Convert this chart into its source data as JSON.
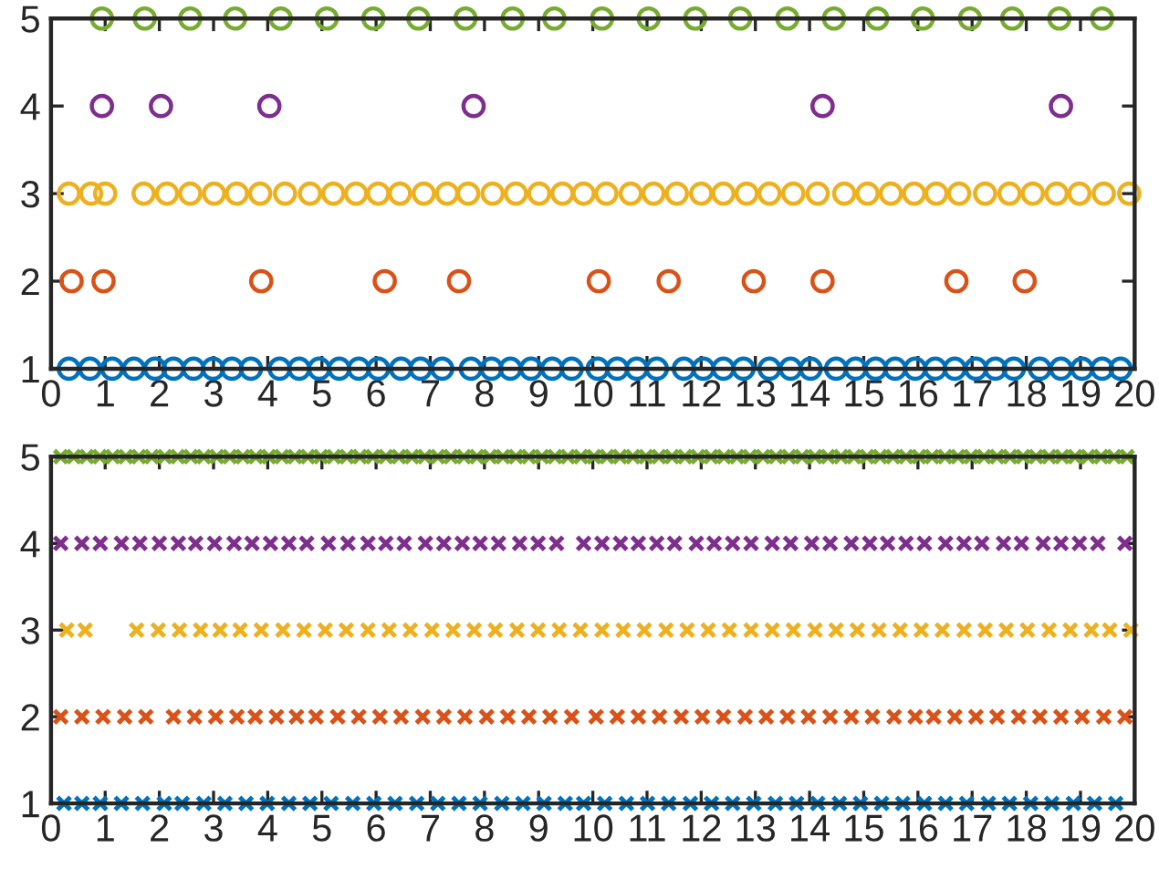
{
  "chart_data": [
    {
      "type": "scatter",
      "marker": "circle",
      "xlim": [
        0,
        20
      ],
      "xticks": [
        0,
        1,
        2,
        3,
        4,
        5,
        6,
        7,
        8,
        9,
        10,
        11,
        12,
        13,
        14,
        15,
        16,
        17,
        18,
        19,
        20
      ],
      "ylim": [
        1,
        5
      ],
      "yticks": [
        1,
        2,
        3,
        4,
        5
      ],
      "grid": false,
      "series": [
        {
          "color": "#0072bd",
          "x": [
            0.33,
            0.72,
            1.13,
            1.53,
            1.92,
            2.26,
            2.63,
            2.99,
            3.34,
            3.69,
            4.22,
            4.58,
            4.95,
            5.32,
            5.68,
            6.04,
            6.46,
            6.82,
            7.22,
            7.75,
            8.13,
            8.48,
            8.86,
            9.25,
            9.61,
            10.09,
            10.45,
            10.81,
            11.18,
            11.68,
            12.04,
            12.41,
            12.78,
            13.26,
            13.65,
            14.02,
            14.49,
            14.85,
            15.22,
            15.58,
            15.95,
            16.32,
            16.68,
            17.07,
            17.43,
            17.77,
            18.25,
            18.64,
            19.03,
            19.4,
            19.74
          ],
          "values": [
            1,
            1,
            1,
            1,
            1,
            1,
            1,
            1,
            1,
            1,
            1,
            1,
            1,
            1,
            1,
            1,
            1,
            1,
            1,
            1,
            1,
            1,
            1,
            1,
            1,
            1,
            1,
            1,
            1,
            1,
            1,
            1,
            1,
            1,
            1,
            1,
            1,
            1,
            1,
            1,
            1,
            1,
            1,
            1,
            1,
            1,
            1,
            1,
            1,
            1,
            1
          ]
        },
        {
          "color": "#d95319",
          "x": [
            0.38,
            0.97,
            3.88,
            6.16,
            7.53,
            10.11,
            11.4,
            12.97,
            14.24,
            16.71,
            17.97
          ],
          "values": [
            2,
            2,
            2,
            2,
            2,
            2,
            2,
            2,
            2,
            2,
            2
          ]
        },
        {
          "color": "#edb120",
          "x": [
            0.33,
            0.74,
            1.0,
            1.71,
            2.14,
            2.57,
            3.01,
            3.43,
            3.86,
            4.32,
            4.78,
            5.21,
            5.63,
            6.04,
            6.44,
            6.88,
            7.31,
            7.7,
            8.15,
            8.58,
            9.01,
            9.44,
            9.83,
            10.25,
            10.7,
            11.12,
            11.55,
            12.0,
            12.41,
            12.84,
            13.26,
            13.7,
            14.15,
            14.64,
            15.07,
            15.5,
            15.93,
            16.34,
            16.76,
            17.24,
            17.69,
            18.12,
            18.56,
            18.98,
            19.43,
            19.9
          ],
          "values": [
            3,
            3,
            3,
            3,
            3,
            3,
            3,
            3,
            3,
            3,
            3,
            3,
            3,
            3,
            3,
            3,
            3,
            3,
            3,
            3,
            3,
            3,
            3,
            3,
            3,
            3,
            3,
            3,
            3,
            3,
            3,
            3,
            3,
            3,
            3,
            3,
            3,
            3,
            3,
            3,
            3,
            3,
            3,
            3,
            3,
            3
          ]
        },
        {
          "color": "#7e2f8e",
          "x": [
            0.94,
            2.03,
            4.03,
            7.8,
            14.24,
            18.64
          ],
          "values": [
            4,
            4,
            4,
            4,
            4,
            4
          ]
        },
        {
          "color": "#77ac30",
          "x": [
            0.94,
            1.73,
            2.57,
            3.4,
            4.24,
            5.09,
            5.95,
            6.78,
            7.65,
            8.52,
            9.29,
            10.17,
            11.03,
            11.89,
            12.72,
            13.59,
            14.45,
            15.25,
            16.09,
            16.96,
            17.74,
            18.61,
            19.4
          ],
          "values": [
            5,
            5,
            5,
            5,
            5,
            5,
            5,
            5,
            5,
            5,
            5,
            5,
            5,
            5,
            5,
            5,
            5,
            5,
            5,
            5,
            5,
            5,
            5
          ]
        }
      ]
    },
    {
      "type": "scatter",
      "marker": "cross",
      "xlim": [
        0,
        20
      ],
      "xticks": [
        0,
        1,
        2,
        3,
        4,
        5,
        6,
        7,
        8,
        9,
        10,
        11,
        12,
        13,
        14,
        15,
        16,
        17,
        18,
        19,
        20
      ],
      "ylim": [
        1,
        5
      ],
      "yticks": [
        1,
        2,
        3,
        4,
        5
      ],
      "grid": false,
      "series": [
        {
          "color": "#0072bd",
          "x": [
            0.24,
            0.57,
            0.91,
            1.3,
            1.69,
            2.09,
            2.42,
            2.82,
            3.21,
            3.6,
            3.99,
            4.39,
            4.78,
            5.17,
            5.57,
            5.96,
            6.35,
            6.75,
            7.14,
            7.53,
            7.92,
            8.32,
            8.71,
            9.1,
            9.49,
            9.83,
            10.22,
            10.62,
            11.01,
            11.4,
            11.8,
            12.19,
            12.58,
            12.97,
            13.37,
            13.76,
            14.15,
            14.55,
            14.94,
            15.33,
            15.72,
            16.12,
            16.51,
            16.9,
            17.3,
            17.69,
            18.08,
            18.47,
            18.87,
            19.26,
            19.65
          ],
          "values": [
            1,
            1,
            1,
            1,
            1,
            1,
            1,
            1,
            1,
            1,
            1,
            1,
            1,
            1,
            1,
            1,
            1,
            1,
            1,
            1,
            1,
            1,
            1,
            1,
            1,
            1,
            1,
            1,
            1,
            1,
            1,
            1,
            1,
            1,
            1,
            1,
            1,
            1,
            1,
            1,
            1,
            1,
            1,
            1,
            1,
            1,
            1,
            1,
            1,
            1,
            1
          ]
        },
        {
          "color": "#d95319",
          "x": [
            0.18,
            0.57,
            0.96,
            1.36,
            1.75,
            2.26,
            2.65,
            3.04,
            3.43,
            3.77,
            4.16,
            4.53,
            4.89,
            5.29,
            5.68,
            6.07,
            6.46,
            6.86,
            7.25,
            7.64,
            8.04,
            8.43,
            8.82,
            9.21,
            9.61,
            10.06,
            10.45,
            10.84,
            11.23,
            11.63,
            12.02,
            12.41,
            12.81,
            13.2,
            13.59,
            13.98,
            14.38,
            14.77,
            15.16,
            15.56,
            15.95,
            16.29,
            16.68,
            17.07,
            17.46,
            17.86,
            18.25,
            18.64,
            19.03,
            19.43,
            19.82
          ],
          "values": [
            2,
            2,
            2,
            2,
            2,
            2,
            2,
            2,
            2,
            2,
            2,
            2,
            2,
            2,
            2,
            2,
            2,
            2,
            2,
            2,
            2,
            2,
            2,
            2,
            2,
            2,
            2,
            2,
            2,
            2,
            2,
            2,
            2,
            2,
            2,
            2,
            2,
            2,
            2,
            2,
            2,
            2,
            2,
            2,
            2,
            2,
            2,
            2,
            2,
            2,
            2
          ]
        },
        {
          "color": "#edb120",
          "x": [
            0.29,
            0.63,
            1.58,
            1.98,
            2.37,
            2.76,
            3.12,
            3.49,
            3.88,
            4.28,
            4.67,
            5.06,
            5.45,
            5.85,
            6.24,
            6.63,
            7.03,
            7.42,
            7.81,
            8.2,
            8.6,
            8.99,
            9.38,
            9.77,
            10.17,
            10.56,
            10.95,
            11.35,
            11.74,
            12.13,
            12.52,
            12.92,
            13.31,
            13.7,
            14.1,
            14.49,
            14.88,
            15.28,
            15.67,
            16.06,
            16.45,
            16.85,
            17.24,
            17.63,
            18.02,
            18.42,
            18.81,
            19.2,
            19.54,
            19.93
          ],
          "values": [
            3,
            3,
            3,
            3,
            3,
            3,
            3,
            3,
            3,
            3,
            3,
            3,
            3,
            3,
            3,
            3,
            3,
            3,
            3,
            3,
            3,
            3,
            3,
            3,
            3,
            3,
            3,
            3,
            3,
            3,
            3,
            3,
            3,
            3,
            3,
            3,
            3,
            3,
            3,
            3,
            3,
            3,
            3,
            3,
            3,
            3,
            3,
            3,
            3,
            3
          ]
        },
        {
          "color": "#7e2f8e",
          "x": [
            0.18,
            0.57,
            0.91,
            1.3,
            1.64,
            2.0,
            2.35,
            2.67,
            3.02,
            3.38,
            3.71,
            4.05,
            4.39,
            4.72,
            5.12,
            5.48,
            5.85,
            6.18,
            6.52,
            6.91,
            7.25,
            7.59,
            7.92,
            8.26,
            8.65,
            8.99,
            9.33,
            9.83,
            10.17,
            10.51,
            10.84,
            11.18,
            11.51,
            11.91,
            12.24,
            12.58,
            12.92,
            13.31,
            13.65,
            14.04,
            14.38,
            14.77,
            15.11,
            15.44,
            15.78,
            16.12,
            16.51,
            16.85,
            17.18,
            17.58,
            17.91,
            18.31,
            18.64,
            18.98,
            19.32,
            19.82
          ],
          "values": [
            4,
            4,
            4,
            4,
            4,
            4,
            4,
            4,
            4,
            4,
            4,
            4,
            4,
            4,
            4,
            4,
            4,
            4,
            4,
            4,
            4,
            4,
            4,
            4,
            4,
            4,
            4,
            4,
            4,
            4,
            4,
            4,
            4,
            4,
            4,
            4,
            4,
            4,
            4,
            4,
            4,
            4,
            4,
            4,
            4,
            4,
            4,
            4,
            4,
            4,
            4,
            4,
            4,
            4,
            4,
            4
          ]
        },
        {
          "color": "#77ac30",
          "x": [
            0.18,
            0.42,
            0.66,
            0.9,
            1.14,
            1.38,
            1.62,
            1.86,
            2.1,
            2.34,
            2.58,
            2.82,
            3.06,
            3.3,
            3.54,
            3.78,
            4.02,
            4.26,
            4.5,
            4.74,
            4.98,
            5.22,
            5.46,
            5.7,
            5.94,
            6.18,
            6.42,
            6.66,
            6.9,
            7.14,
            7.38,
            7.62,
            7.86,
            8.1,
            8.34,
            8.58,
            8.82,
            9.06,
            9.3,
            9.54,
            9.78,
            10.02,
            10.26,
            10.5,
            10.74,
            10.98,
            11.22,
            11.46,
            11.7,
            11.94,
            12.18,
            12.42,
            12.66,
            12.9,
            13.14,
            13.38,
            13.62,
            13.86,
            14.1,
            14.34,
            14.58,
            14.82,
            15.06,
            15.3,
            15.54,
            15.78,
            16.02,
            16.26,
            16.5,
            16.74,
            16.98,
            17.22,
            17.46,
            17.7,
            17.94,
            18.18,
            18.42,
            18.66,
            18.9,
            19.14,
            19.38,
            19.62,
            19.86
          ],
          "values": [
            5,
            5,
            5,
            5,
            5,
            5,
            5,
            5,
            5,
            5,
            5,
            5,
            5,
            5,
            5,
            5,
            5,
            5,
            5,
            5,
            5,
            5,
            5,
            5,
            5,
            5,
            5,
            5,
            5,
            5,
            5,
            5,
            5,
            5,
            5,
            5,
            5,
            5,
            5,
            5,
            5,
            5,
            5,
            5,
            5,
            5,
            5,
            5,
            5,
            5,
            5,
            5,
            5,
            5,
            5,
            5,
            5,
            5,
            5,
            5,
            5,
            5,
            5,
            5,
            5,
            5,
            5,
            5,
            5,
            5,
            5,
            5,
            5,
            5,
            5,
            5,
            5,
            5,
            5,
            5,
            5,
            5,
            5
          ]
        }
      ]
    }
  ]
}
